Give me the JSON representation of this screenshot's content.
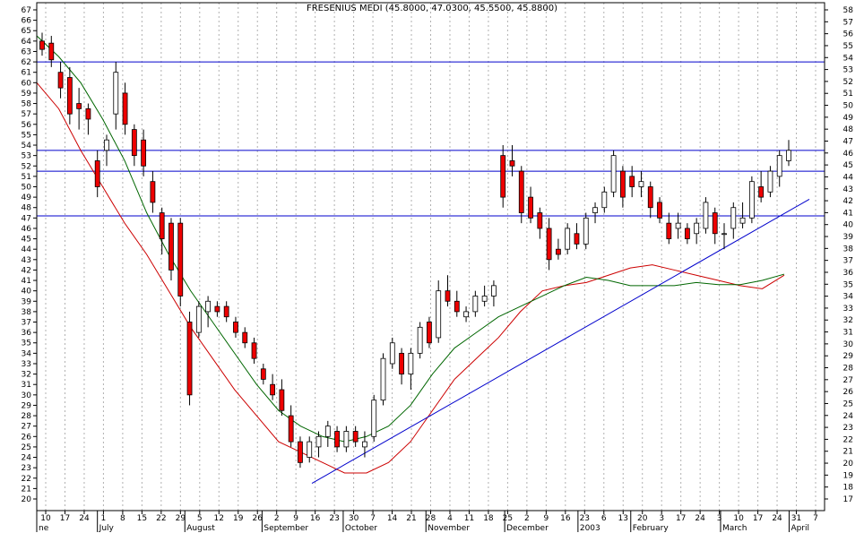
{
  "chart_data": {
    "type": "candlestick",
    "title": "FRESENIUS MEDI (45.8000, 47.0300, 45.5500, 45.8800)",
    "left_axis": {
      "min": 20,
      "max": 67,
      "ticks": [
        20,
        21,
        22,
        23,
        24,
        25,
        26,
        27,
        28,
        29,
        30,
        31,
        32,
        33,
        34,
        35,
        36,
        37,
        38,
        39,
        40,
        41,
        42,
        43,
        44,
        45,
        46,
        47,
        48,
        49,
        50,
        51,
        52,
        53,
        54,
        55,
        56,
        57,
        58,
        59,
        60,
        61,
        62,
        63,
        64,
        65,
        66,
        67
      ]
    },
    "right_axis": {
      "min": 17,
      "max": 58,
      "ticks": [
        17,
        18,
        19,
        20,
        21,
        22,
        23,
        24,
        25,
        26,
        27,
        28,
        29,
        30,
        31,
        32,
        33,
        34,
        35,
        36,
        37,
        38,
        39,
        40,
        41,
        42,
        43,
        44,
        45,
        46,
        47,
        48,
        49,
        50,
        51,
        52,
        53,
        54,
        55,
        56,
        57,
        58
      ]
    },
    "x_tick_labels": [
      "10",
      "17",
      "24",
      "1",
      "8",
      "15",
      "22",
      "29",
      "5",
      "12",
      "19",
      "26",
      "2",
      "9",
      "16",
      "23",
      "30",
      "7",
      "14",
      "21",
      "28",
      "4",
      "11",
      "18",
      "25",
      "2",
      "9",
      "16",
      "23",
      "6",
      "13",
      "20",
      "3",
      "17",
      "24",
      "3",
      "10",
      "17",
      "24",
      "31",
      "7"
    ],
    "month_labels": [
      "ne",
      "July",
      "August",
      "September",
      "October",
      "November",
      "December",
      "2003",
      "February",
      "March",
      "April"
    ],
    "horizontal_lines": [
      62.0,
      53.5,
      51.5,
      47.2
    ],
    "trend_lines": [
      {
        "from": [
          0,
          21.5
        ],
        "to": [
          1,
          48.8
        ]
      }
    ],
    "series": [
      {
        "name": "",
        "color": "#cc0000",
        "kind": "moving-average",
        "values": [
          60.0,
          57.5,
          53.5,
          50.0,
          46.5,
          43.5,
          40.0,
          36.5,
          33.5,
          30.5,
          28.0,
          25.5,
          24.5,
          23.5,
          22.5,
          22.5,
          23.5,
          25.5,
          28.5,
          31.5,
          33.5,
          35.5,
          38.0,
          40.0,
          40.5,
          40.8,
          41.5,
          42.2,
          42.5,
          42.0,
          41.5,
          41.0,
          40.5,
          40.2,
          41.5
        ]
      },
      {
        "name": "",
        "color": "#006600",
        "kind": "moving-average",
        "values": [
          64.5,
          62.5,
          60.0,
          56.5,
          52.5,
          47.5,
          43.5,
          40.0,
          37.0,
          34.0,
          31.0,
          28.5,
          27.0,
          26.0,
          25.5,
          26.0,
          27.0,
          29.0,
          32.0,
          34.5,
          36.0,
          37.5,
          38.5,
          39.5,
          40.5,
          41.3,
          41.0,
          40.5,
          40.5,
          40.5,
          40.8,
          40.6,
          40.6,
          41.0,
          41.6
        ]
      }
    ],
    "candles": [
      {
        "o": 64.0,
        "h": 64.8,
        "l": 62.6,
        "c": 63.2
      },
      {
        "o": 63.8,
        "h": 64.5,
        "l": 61.5,
        "c": 62.2
      },
      {
        "o": 61.0,
        "h": 62.0,
        "l": 58.5,
        "c": 59.5
      },
      {
        "o": 60.5,
        "h": 61.5,
        "l": 56.0,
        "c": 57.0
      },
      {
        "o": 58.0,
        "h": 59.5,
        "l": 55.5,
        "c": 57.5
      },
      {
        "o": 57.5,
        "h": 58.0,
        "l": 55.0,
        "c": 56.5
      },
      {
        "o": 52.5,
        "h": 53.5,
        "l": 49.0,
        "c": 50.0
      },
      {
        "o": 53.5,
        "h": 55.0,
        "l": 52.0,
        "c": 54.5
      },
      {
        "o": 57.0,
        "h": 62.0,
        "l": 55.5,
        "c": 61.0
      },
      {
        "o": 59.0,
        "h": 60.0,
        "l": 55.0,
        "c": 56.0
      },
      {
        "o": 55.5,
        "h": 56.0,
        "l": 52.0,
        "c": 53.0
      },
      {
        "o": 54.5,
        "h": 55.5,
        "l": 51.0,
        "c": 52.0
      },
      {
        "o": 50.5,
        "h": 51.5,
        "l": 47.5,
        "c": 48.5
      },
      {
        "o": 47.5,
        "h": 48.0,
        "l": 43.5,
        "c": 45.0
      },
      {
        "o": 46.5,
        "h": 47.0,
        "l": 41.0,
        "c": 42.0
      },
      {
        "o": 46.5,
        "h": 47.0,
        "l": 38.5,
        "c": 39.5
      },
      {
        "o": 37.0,
        "h": 38.0,
        "l": 29.0,
        "c": 30.0
      },
      {
        "o": 36.0,
        "h": 39.0,
        "l": 35.5,
        "c": 38.5
      },
      {
        "o": 38.0,
        "h": 39.5,
        "l": 36.5,
        "c": 39.0
      },
      {
        "o": 38.5,
        "h": 39.0,
        "l": 37.5,
        "c": 38.0
      },
      {
        "o": 38.5,
        "h": 39.0,
        "l": 37.0,
        "c": 37.5
      },
      {
        "o": 37.0,
        "h": 37.5,
        "l": 35.5,
        "c": 36.0
      },
      {
        "o": 36.0,
        "h": 36.5,
        "l": 34.5,
        "c": 35.0
      },
      {
        "o": 35.0,
        "h": 35.5,
        "l": 33.0,
        "c": 33.5
      },
      {
        "o": 32.5,
        "h": 33.0,
        "l": 31.0,
        "c": 31.5
      },
      {
        "o": 31.0,
        "h": 32.0,
        "l": 29.5,
        "c": 30.0
      },
      {
        "o": 30.5,
        "h": 31.5,
        "l": 28.0,
        "c": 28.5
      },
      {
        "o": 28.0,
        "h": 29.0,
        "l": 25.0,
        "c": 25.5
      },
      {
        "o": 25.5,
        "h": 26.0,
        "l": 23.0,
        "c": 23.5
      },
      {
        "o": 24.0,
        "h": 26.0,
        "l": 23.5,
        "c": 25.5
      },
      {
        "o": 25.0,
        "h": 26.5,
        "l": 24.0,
        "c": 26.0
      },
      {
        "o": 26.0,
        "h": 27.5,
        "l": 25.0,
        "c": 27.0
      },
      {
        "o": 26.5,
        "h": 27.0,
        "l": 24.5,
        "c": 25.0
      },
      {
        "o": 25.0,
        "h": 27.0,
        "l": 24.5,
        "c": 26.5
      },
      {
        "o": 26.5,
        "h": 27.0,
        "l": 25.0,
        "c": 25.5
      },
      {
        "o": 25.0,
        "h": 26.5,
        "l": 24.0,
        "c": 25.5
      },
      {
        "o": 26.0,
        "h": 30.0,
        "l": 25.5,
        "c": 29.5
      },
      {
        "o": 29.5,
        "h": 34.0,
        "l": 29.0,
        "c": 33.5
      },
      {
        "o": 33.0,
        "h": 35.5,
        "l": 32.5,
        "c": 35.0
      },
      {
        "o": 34.0,
        "h": 34.5,
        "l": 31.0,
        "c": 32.0
      },
      {
        "o": 32.0,
        "h": 34.5,
        "l": 30.5,
        "c": 34.0
      },
      {
        "o": 34.0,
        "h": 37.0,
        "l": 33.5,
        "c": 36.5
      },
      {
        "o": 37.0,
        "h": 37.5,
        "l": 34.5,
        "c": 35.0
      },
      {
        "o": 35.5,
        "h": 41.0,
        "l": 35.0,
        "c": 40.0
      },
      {
        "o": 40.0,
        "h": 41.5,
        "l": 38.5,
        "c": 39.0
      },
      {
        "o": 39.0,
        "h": 40.0,
        "l": 37.5,
        "c": 38.0
      },
      {
        "o": 37.5,
        "h": 38.5,
        "l": 37.0,
        "c": 38.0
      },
      {
        "o": 38.0,
        "h": 40.0,
        "l": 37.5,
        "c": 39.5
      },
      {
        "o": 39.0,
        "h": 40.5,
        "l": 38.5,
        "c": 39.5
      },
      {
        "o": 39.5,
        "h": 41.0,
        "l": 38.5,
        "c": 40.5
      },
      {
        "o": 53.0,
        "h": 54.0,
        "l": 48.0,
        "c": 49.0
      },
      {
        "o": 52.5,
        "h": 54.0,
        "l": 51.0,
        "c": 52.0
      },
      {
        "o": 51.5,
        "h": 52.0,
        "l": 46.5,
        "c": 47.5
      },
      {
        "o": 49.0,
        "h": 50.0,
        "l": 46.5,
        "c": 47.0
      },
      {
        "o": 47.5,
        "h": 48.0,
        "l": 45.0,
        "c": 46.0
      },
      {
        "o": 46.0,
        "h": 47.0,
        "l": 42.0,
        "c": 43.0
      },
      {
        "o": 44.0,
        "h": 45.0,
        "l": 43.0,
        "c": 43.5
      },
      {
        "o": 44.0,
        "h": 46.5,
        "l": 43.5,
        "c": 46.0
      },
      {
        "o": 45.5,
        "h": 46.5,
        "l": 44.0,
        "c": 44.5
      },
      {
        "o": 44.5,
        "h": 47.5,
        "l": 44.0,
        "c": 47.0
      },
      {
        "o": 47.5,
        "h": 48.5,
        "l": 46.5,
        "c": 48.0
      },
      {
        "o": 48.0,
        "h": 50.0,
        "l": 47.5,
        "c": 49.5
      },
      {
        "o": 49.5,
        "h": 53.5,
        "l": 49.0,
        "c": 53.0
      },
      {
        "o": 51.5,
        "h": 52.0,
        "l": 48.0,
        "c": 49.0
      },
      {
        "o": 51.0,
        "h": 52.0,
        "l": 49.0,
        "c": 50.0
      },
      {
        "o": 50.0,
        "h": 51.5,
        "l": 49.0,
        "c": 50.5
      },
      {
        "o": 50.0,
        "h": 50.5,
        "l": 47.0,
        "c": 48.0
      },
      {
        "o": 48.5,
        "h": 49.0,
        "l": 46.5,
        "c": 47.0
      },
      {
        "o": 46.5,
        "h": 47.5,
        "l": 44.5,
        "c": 45.0
      },
      {
        "o": 46.0,
        "h": 47.5,
        "l": 45.0,
        "c": 46.5
      },
      {
        "o": 46.0,
        "h": 46.5,
        "l": 44.5,
        "c": 45.0
      },
      {
        "o": 45.5,
        "h": 47.0,
        "l": 44.5,
        "c": 46.5
      },
      {
        "o": 46.0,
        "h": 49.0,
        "l": 45.5,
        "c": 48.5
      },
      {
        "o": 47.5,
        "h": 48.0,
        "l": 44.5,
        "c": 45.5
      },
      {
        "o": 45.5,
        "h": 46.5,
        "l": 44.0,
        "c": 45.5
      },
      {
        "o": 46.0,
        "h": 48.5,
        "l": 45.0,
        "c": 48.0
      },
      {
        "o": 46.5,
        "h": 48.5,
        "l": 46.0,
        "c": 47.0
      },
      {
        "o": 47.0,
        "h": 51.0,
        "l": 46.5,
        "c": 50.5
      },
      {
        "o": 50.0,
        "h": 51.5,
        "l": 48.5,
        "c": 49.0
      },
      {
        "o": 49.5,
        "h": 52.0,
        "l": 49.0,
        "c": 51.5
      },
      {
        "o": 51.0,
        "h": 53.5,
        "l": 50.0,
        "c": 53.0
      },
      {
        "o": 52.5,
        "h": 54.5,
        "l": 52.0,
        "c": 53.5
      }
    ]
  }
}
